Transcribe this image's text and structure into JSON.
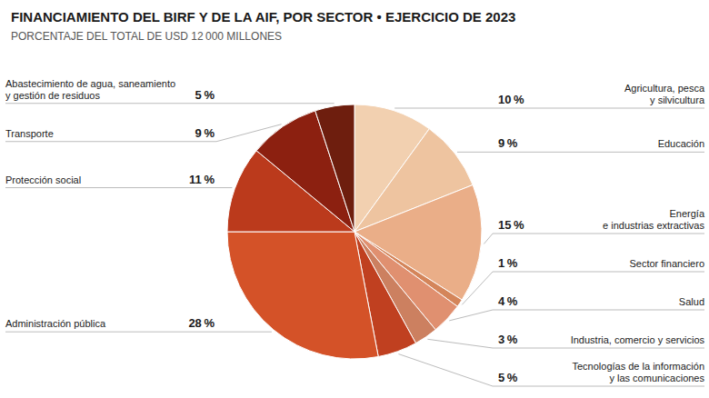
{
  "chart_data": {
    "type": "pie",
    "title": "FINANCIAMIENTO DEL BIRF Y DE LA AIF, POR SECTOR • EJERCICIO DE 2023",
    "subtitle": "PORCENTAJE DEL TOTAL DE USD 12 000 MILLONES",
    "categories": [
      "Agricultura, pesca\ny silvicultura",
      "Educación",
      "Energía\ne industrias extractivas",
      "Sector financiero",
      "Salud",
      "Industria, comercio y servicios",
      "Tecnologías de la información\ny las comunicaciones",
      "Administración pública",
      "Protección social",
      "Transporte",
      "Abastecimiento de agua, saneamiento\ny gestión de residuos"
    ],
    "values": [
      10,
      9,
      15,
      1,
      4,
      3,
      5,
      28,
      11,
      9,
      5
    ],
    "value_labels": [
      "10 %",
      "9 %",
      "15 %",
      "1 %",
      "4 %",
      "3 %",
      "5 %",
      "28 %",
      "11 %",
      "9 %",
      "5 %"
    ],
    "colors": [
      "#F2D0B0",
      "#EEC4A0",
      "#EAAE88",
      "#D4855A",
      "#E09070",
      "#CC8060",
      "#C04020",
      "#D45228",
      "#BB3A1C",
      "#8C2010",
      "#6E1E0E"
    ],
    "data_labels": true
  }
}
